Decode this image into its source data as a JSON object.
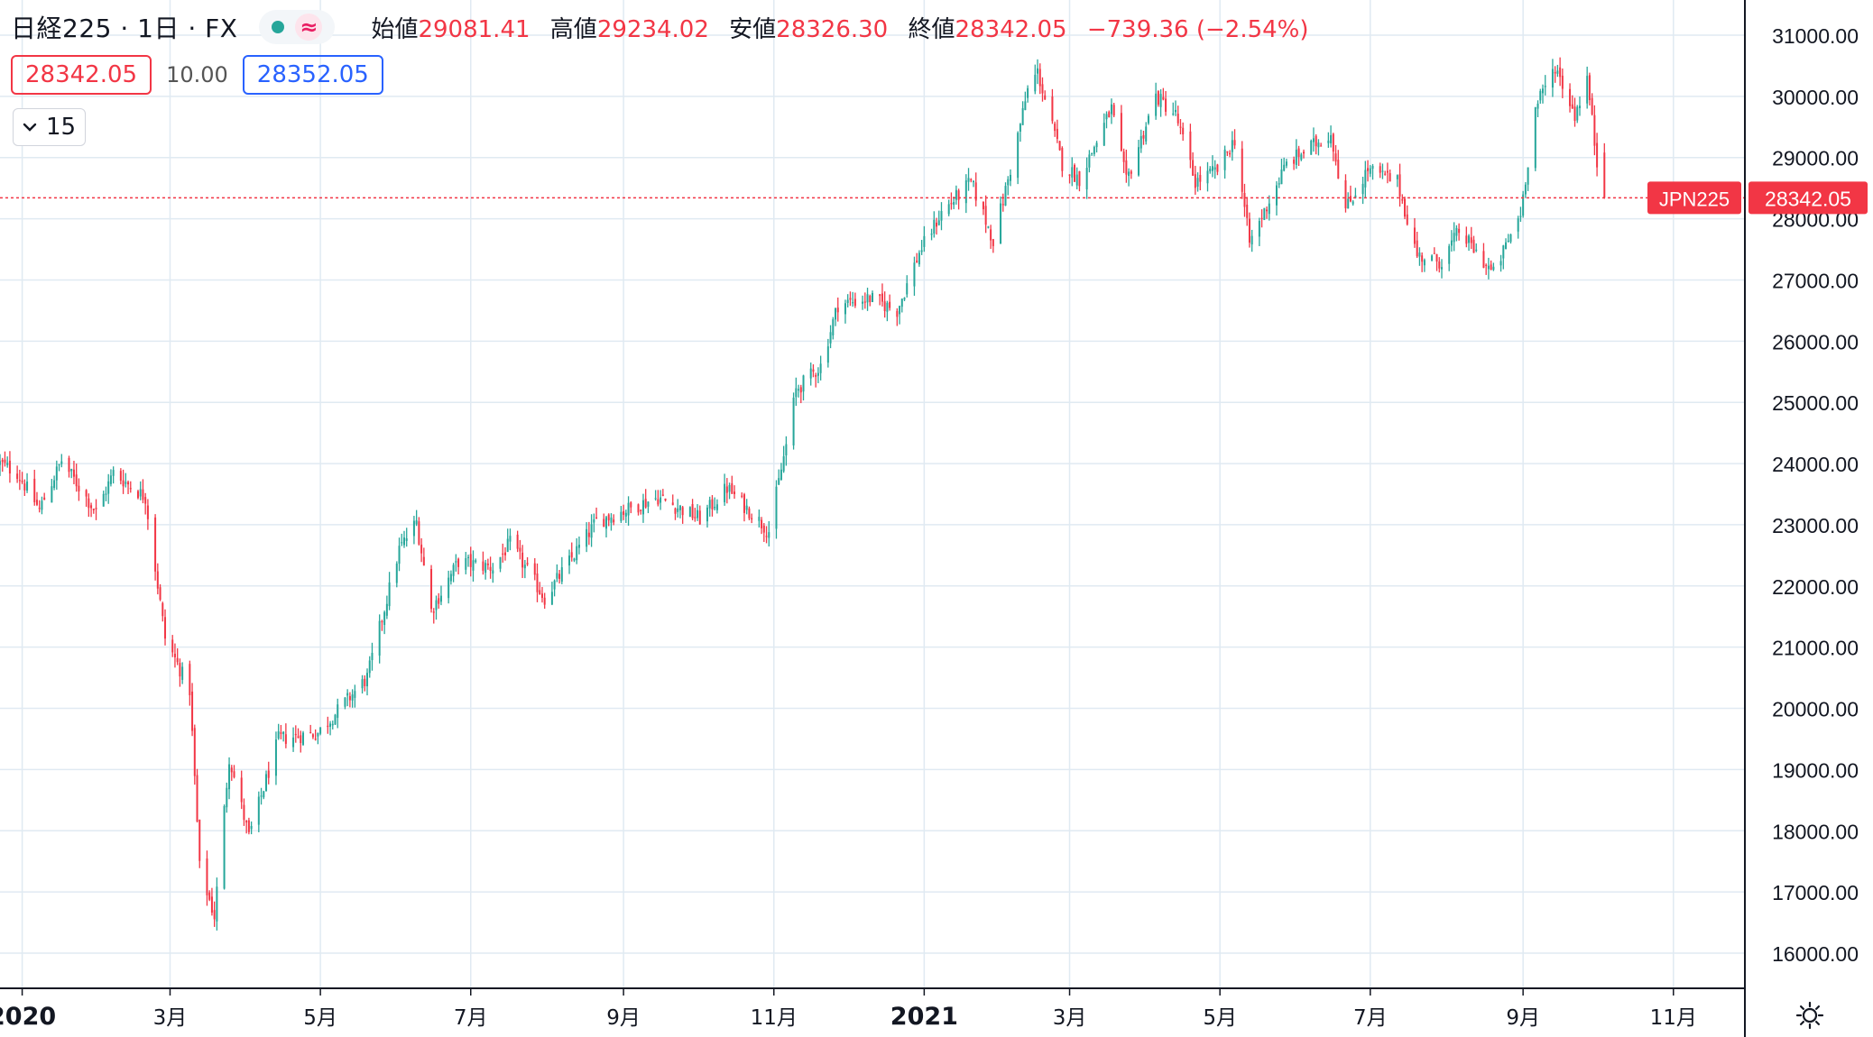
{
  "legend": {
    "symbol": "日経225 · 1日 · FX",
    "wave_icon": "≈",
    "open_label": "始値",
    "open": "29081.41",
    "high_label": "高値",
    "high": "29234.02",
    "low_label": "安値",
    "low": "28326.30",
    "close_label": "終値",
    "close": "28342.05",
    "change": "−739.36 (−2.54%)"
  },
  "quote": {
    "sell": "28342.05",
    "spread": "10.00",
    "buy": "28352.05"
  },
  "indicator_toggle": {
    "count": "15",
    "icon": "chevron-down-icon"
  },
  "colors": {
    "up": "#26a69a",
    "down": "#f23645",
    "grid": "#e0eaf2",
    "last_price": "#f23645"
  },
  "chart_data": {
    "type": "candlestick",
    "ticker": "JPN225",
    "last_price": "28342.05",
    "y_axis": {
      "range": [
        15500,
        31500
      ],
      "ticks": [
        "31000.00",
        "30000.00",
        "29000.00",
        "28000.00",
        "27000.00",
        "26000.00",
        "25000.00",
        "24000.00",
        "23000.00",
        "22000.00",
        "21000.00",
        "20000.00",
        "19000.00",
        "18000.00",
        "17000.00",
        "16000.00"
      ]
    },
    "x_axis": {
      "range": [
        "2019-12-23",
        "2021-11-30"
      ],
      "ticks": [
        {
          "label": "2020",
          "date": "2020-01-01",
          "bold": true
        },
        {
          "label": "3月",
          "date": "2020-03-01"
        },
        {
          "label": "5月",
          "date": "2020-05-01"
        },
        {
          "label": "7月",
          "date": "2020-07-01"
        },
        {
          "label": "9月",
          "date": "2020-09-01"
        },
        {
          "label": "11月",
          "date": "2020-11-01"
        },
        {
          "label": "2021",
          "date": "2021-01-01",
          "bold": true
        },
        {
          "label": "3月",
          "date": "2021-03-01"
        },
        {
          "label": "5月",
          "date": "2021-05-01"
        },
        {
          "label": "7月",
          "date": "2021-07-01"
        },
        {
          "label": "9月",
          "date": "2021-09-01"
        },
        {
          "label": "11月",
          "date": "2021-11-01"
        }
      ]
    },
    "close_anchors": [
      [
        "2019-12-23",
        24000
      ],
      [
        "2019-12-30",
        23850
      ],
      [
        "2020-01-08",
        23250
      ],
      [
        "2020-01-17",
        24050
      ],
      [
        "2020-01-31",
        23200
      ],
      [
        "2020-02-07",
        23850
      ],
      [
        "2020-02-20",
        23450
      ],
      [
        "2020-02-28",
        21150
      ],
      [
        "2020-03-09",
        20300
      ],
      [
        "2020-03-13",
        17400
      ],
      [
        "2020-03-19",
        16600
      ],
      [
        "2020-03-25",
        19200
      ],
      [
        "2020-04-02",
        17900
      ],
      [
        "2020-04-14",
        19500
      ],
      [
        "2020-04-30",
        19600
      ],
      [
        "2020-05-20",
        20500
      ],
      [
        "2020-06-02",
        22600
      ],
      [
        "2020-06-09",
        23050
      ],
      [
        "2020-06-15",
        21600
      ],
      [
        "2020-06-26",
        22400
      ],
      [
        "2020-07-10",
        22300
      ],
      [
        "2020-07-17",
        22700
      ],
      [
        "2020-07-31",
        21800
      ],
      [
        "2020-08-21",
        23050
      ],
      [
        "2020-09-15",
        23450
      ],
      [
        "2020-10-02",
        23100
      ],
      [
        "2020-10-13",
        23600
      ],
      [
        "2020-10-30",
        22900
      ],
      [
        "2020-11-06",
        24300
      ],
      [
        "2020-11-10",
        25200
      ],
      [
        "2020-11-20",
        25600
      ],
      [
        "2020-11-27",
        26600
      ],
      [
        "2020-12-10",
        26700
      ],
      [
        "2020-12-21",
        26500
      ],
      [
        "2020-12-30",
        27450
      ],
      [
        "2021-01-08",
        28100
      ],
      [
        "2021-01-20",
        28600
      ],
      [
        "2021-01-29",
        27650
      ],
      [
        "2021-02-05",
        28800
      ],
      [
        "2021-02-12",
        30100
      ],
      [
        "2021-02-16",
        30400
      ],
      [
        "2021-02-26",
        28900
      ],
      [
        "2021-03-05",
        28650
      ],
      [
        "2021-03-18",
        29800
      ],
      [
        "2021-03-24",
        28600
      ],
      [
        "2021-04-05",
        30000
      ],
      [
        "2021-04-13",
        29700
      ],
      [
        "2021-04-21",
        28600
      ],
      [
        "2021-04-30",
        28800
      ],
      [
        "2021-05-07",
        29300
      ],
      [
        "2021-05-13",
        27600
      ],
      [
        "2021-05-28",
        28900
      ],
      [
        "2021-06-15",
        29400
      ],
      [
        "2021-06-21",
        28150
      ],
      [
        "2021-06-30",
        28800
      ],
      [
        "2021-07-12",
        28600
      ],
      [
        "2021-07-20",
        27400
      ],
      [
        "2021-07-30",
        27300
      ],
      [
        "2021-08-06",
        27800
      ],
      [
        "2021-08-20",
        27100
      ],
      [
        "2021-08-31",
        28100
      ],
      [
        "2021-09-06",
        29800
      ],
      [
        "2021-09-14",
        30500
      ],
      [
        "2021-09-22",
        29700
      ],
      [
        "2021-09-27",
        30300
      ],
      [
        "2021-10-01",
        28900
      ],
      [
        "2021-10-04",
        28342.05
      ]
    ]
  },
  "current_bar": {
    "open": 29081.41,
    "high": 29234.02,
    "low": 28326.3,
    "close": 28342.05
  }
}
